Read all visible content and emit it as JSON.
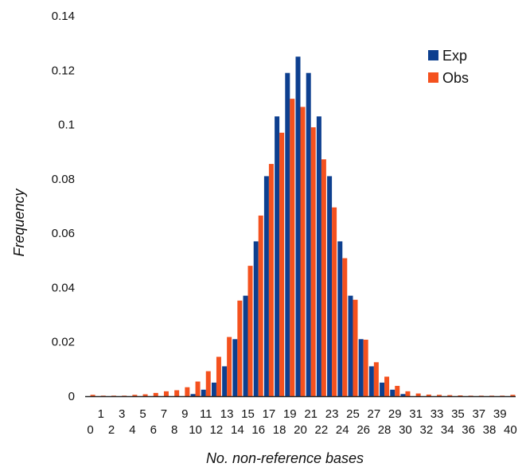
{
  "chart_data": {
    "type": "bar",
    "title": "",
    "xlabel": "No. non-reference bases",
    "ylabel": "Frequency",
    "ylim": [
      0,
      0.14
    ],
    "yticks": [
      0,
      0.02,
      0.04,
      0.06,
      0.08,
      0.1,
      0.12,
      0.14
    ],
    "ytick_labels": [
      "0",
      "0.02",
      "0.04",
      "0.06",
      "0.08",
      "0.1",
      "0.12",
      "0.14"
    ],
    "grid": false,
    "legend_position": "top-right",
    "categories": [
      "0",
      "1",
      "2",
      "3",
      "4",
      "5",
      "6",
      "7",
      "8",
      "9",
      "10",
      "11",
      "12",
      "13",
      "14",
      "15",
      "16",
      "17",
      "18",
      "19",
      "20",
      "21",
      "22",
      "23",
      "24",
      "25",
      "26",
      "27",
      "28",
      "29",
      "30",
      "31",
      "32",
      "33",
      "34",
      "35",
      "36",
      "37",
      "38",
      "39",
      "40"
    ],
    "series": [
      {
        "name": "Exp",
        "color": "#0d3f8f",
        "values": [
          0,
          0,
          0,
          0,
          0,
          0,
          0,
          0,
          0,
          0,
          0.0008,
          0.0024,
          0.005,
          0.011,
          0.021,
          0.037,
          0.057,
          0.081,
          0.103,
          0.119,
          0.125,
          0.119,
          0.103,
          0.081,
          0.057,
          0.037,
          0.021,
          0.011,
          0.005,
          0.0024,
          0.0008,
          0,
          0,
          0,
          0,
          0,
          0,
          0,
          0,
          0,
          0
        ]
      },
      {
        "name": "Obs",
        "color": "#f4511e",
        "values": [
          0.0005,
          0.0002,
          0.0002,
          0.0002,
          0.0005,
          0.0007,
          0.0012,
          0.0018,
          0.0022,
          0.0033,
          0.0054,
          0.0092,
          0.0145,
          0.0218,
          0.0352,
          0.048,
          0.0665,
          0.0855,
          0.097,
          0.1095,
          0.1065,
          0.099,
          0.0872,
          0.0695,
          0.0508,
          0.0355,
          0.0208,
          0.0125,
          0.0072,
          0.0038,
          0.0018,
          0.001,
          0.0006,
          0.0005,
          0.0004,
          0.0003,
          0.0002,
          0.0002,
          0.0002,
          0.0002,
          0.0005
        ]
      }
    ]
  }
}
